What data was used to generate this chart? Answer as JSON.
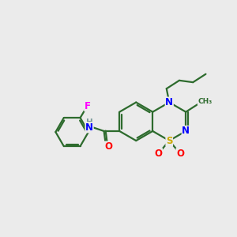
{
  "background_color": "#ebebeb",
  "bond_color": "#2d6b2d",
  "N_color": "#0000ff",
  "S_color": "#ccaa00",
  "O_color": "#ff0000",
  "F_color": "#ff00ff",
  "H_color": "#7a9a9a",
  "line_width": 1.6,
  "figsize": [
    3.0,
    3.0
  ],
  "dpi": 100,
  "xlim": [
    0,
    10
  ],
  "ylim": [
    0,
    10
  ]
}
